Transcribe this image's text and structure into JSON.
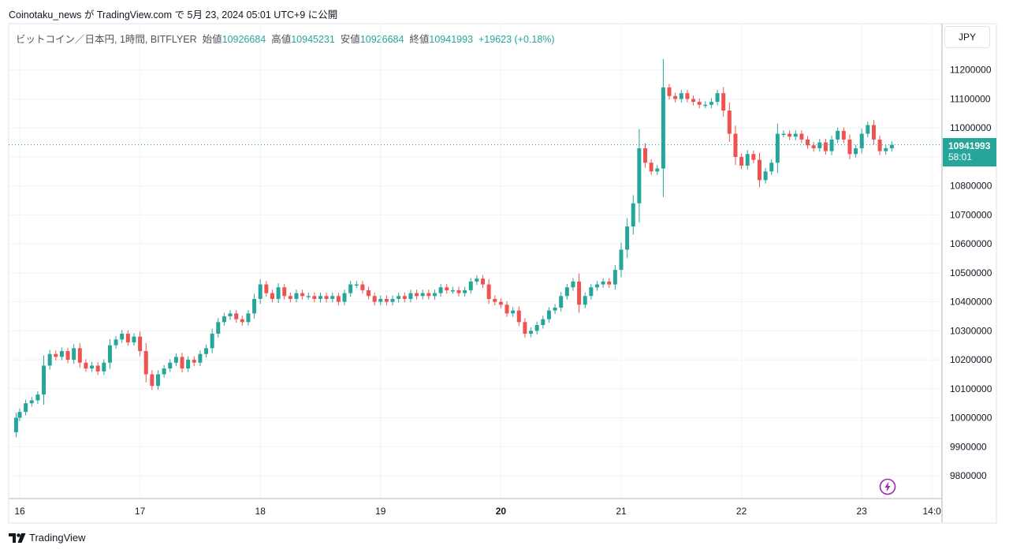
{
  "header": {
    "caption": "Coinotaku_news が TradingView.com で 5月 23, 2024 05:01 UTC+9 に公開"
  },
  "legend": {
    "symbol": "ビットコイン／日本円, 1時間, BITFLYER",
    "open_label": "始値",
    "open": "10926684",
    "high_label": "高値",
    "high": "10945231",
    "low_label": "安値",
    "low": "10926684",
    "close_label": "終値",
    "close": "10941993",
    "change": "+19623 (+0.18%)"
  },
  "currency_button": "JPY",
  "price_tag": {
    "price": "10941993",
    "countdown": "58:01"
  },
  "brand": "TradingView",
  "colors": {
    "up": "#26a69a",
    "down": "#ef5350",
    "grid": "#f0f3fa"
  },
  "chart_data": {
    "type": "candlestick",
    "symbol": "BTC/JPY",
    "interval": "1h",
    "ylim": [
      9740000,
      11280000
    ],
    "y_ticks": [
      9800000,
      9900000,
      10000000,
      10100000,
      10200000,
      10300000,
      10400000,
      10500000,
      10600000,
      10700000,
      10800000,
      10900000,
      11000000,
      11100000,
      11200000
    ],
    "x_ticks": [
      {
        "label": "16",
        "day": 16
      },
      {
        "label": "17",
        "day": 17
      },
      {
        "label": "18",
        "day": 18
      },
      {
        "label": "19",
        "day": 19
      },
      {
        "label": "20",
        "day": 20,
        "bold": true
      },
      {
        "label": "21",
        "day": 21
      },
      {
        "label": "22",
        "day": 22
      },
      {
        "label": "23",
        "day": 23
      },
      {
        "label": "14:0",
        "day": 23.583
      }
    ],
    "last_price": 10941993,
    "series_close": [
      [
        15.95,
        9950000
      ],
      [
        15.97,
        10000000
      ],
      [
        16.0,
        10020000
      ],
      [
        16.05,
        10050000
      ],
      [
        16.1,
        10060000
      ],
      [
        16.15,
        10080000
      ],
      [
        16.2,
        10180000
      ],
      [
        16.25,
        10220000
      ],
      [
        16.3,
        10210000
      ],
      [
        16.35,
        10230000
      ],
      [
        16.4,
        10200000
      ],
      [
        16.45,
        10240000
      ],
      [
        16.5,
        10190000
      ],
      [
        16.55,
        10170000
      ],
      [
        16.6,
        10180000
      ],
      [
        16.65,
        10160000
      ],
      [
        16.7,
        10190000
      ],
      [
        16.75,
        10250000
      ],
      [
        16.8,
        10270000
      ],
      [
        16.85,
        10290000
      ],
      [
        16.9,
        10260000
      ],
      [
        16.95,
        10280000
      ],
      [
        17.0,
        10230000
      ],
      [
        17.05,
        10150000
      ],
      [
        17.1,
        10110000
      ],
      [
        17.15,
        10150000
      ],
      [
        17.2,
        10170000
      ],
      [
        17.25,
        10190000
      ],
      [
        17.3,
        10210000
      ],
      [
        17.35,
        10170000
      ],
      [
        17.4,
        10200000
      ],
      [
        17.45,
        10190000
      ],
      [
        17.5,
        10220000
      ],
      [
        17.55,
        10240000
      ],
      [
        17.6,
        10290000
      ],
      [
        17.65,
        10330000
      ],
      [
        17.7,
        10350000
      ],
      [
        17.75,
        10360000
      ],
      [
        17.8,
        10340000
      ],
      [
        17.85,
        10330000
      ],
      [
        17.9,
        10360000
      ],
      [
        17.95,
        10410000
      ],
      [
        18.0,
        10460000
      ],
      [
        18.05,
        10430000
      ],
      [
        18.1,
        10410000
      ],
      [
        18.15,
        10450000
      ],
      [
        18.2,
        10420000
      ],
      [
        18.25,
        10410000
      ],
      [
        18.3,
        10430000
      ],
      [
        18.35,
        10420000
      ],
      [
        18.4,
        10420000
      ],
      [
        18.45,
        10410000
      ],
      [
        18.5,
        10420000
      ],
      [
        18.55,
        10410000
      ],
      [
        18.6,
        10420000
      ],
      [
        18.65,
        10400000
      ],
      [
        18.7,
        10430000
      ],
      [
        18.75,
        10460000
      ],
      [
        18.8,
        10460000
      ],
      [
        18.85,
        10440000
      ],
      [
        18.9,
        10420000
      ],
      [
        18.95,
        10400000
      ],
      [
        19.0,
        10410000
      ],
      [
        19.05,
        10400000
      ],
      [
        19.1,
        10410000
      ],
      [
        19.15,
        10420000
      ],
      [
        19.2,
        10410000
      ],
      [
        19.25,
        10430000
      ],
      [
        19.3,
        10420000
      ],
      [
        19.35,
        10430000
      ],
      [
        19.4,
        10420000
      ],
      [
        19.45,
        10430000
      ],
      [
        19.5,
        10450000
      ],
      [
        19.55,
        10440000
      ],
      [
        19.6,
        10440000
      ],
      [
        19.65,
        10430000
      ],
      [
        19.7,
        10440000
      ],
      [
        19.75,
        10470000
      ],
      [
        19.8,
        10480000
      ],
      [
        19.85,
        10460000
      ],
      [
        19.9,
        10410000
      ],
      [
        19.95,
        10400000
      ],
      [
        20.0,
        10390000
      ],
      [
        20.05,
        10360000
      ],
      [
        20.1,
        10370000
      ],
      [
        20.15,
        10330000
      ],
      [
        20.2,
        10290000
      ],
      [
        20.25,
        10300000
      ],
      [
        20.3,
        10320000
      ],
      [
        20.35,
        10340000
      ],
      [
        20.4,
        10370000
      ],
      [
        20.45,
        10380000
      ],
      [
        20.5,
        10420000
      ],
      [
        20.55,
        10450000
      ],
      [
        20.6,
        10470000
      ],
      [
        20.65,
        10390000
      ],
      [
        20.7,
        10420000
      ],
      [
        20.75,
        10450000
      ],
      [
        20.8,
        10460000
      ],
      [
        20.85,
        10470000
      ],
      [
        20.9,
        10460000
      ],
      [
        20.95,
        10510000
      ],
      [
        21.0,
        10580000
      ],
      [
        21.05,
        10660000
      ],
      [
        21.1,
        10740000
      ],
      [
        21.15,
        10930000
      ],
      [
        21.2,
        10880000
      ],
      [
        21.25,
        10850000
      ],
      [
        21.3,
        10860000
      ],
      [
        21.35,
        11140000
      ],
      [
        21.4,
        11110000
      ],
      [
        21.45,
        11100000
      ],
      [
        21.5,
        11120000
      ],
      [
        21.55,
        11100000
      ],
      [
        21.6,
        11090000
      ],
      [
        21.65,
        11080000
      ],
      [
        21.7,
        11080000
      ],
      [
        21.75,
        11090000
      ],
      [
        21.8,
        11120000
      ],
      [
        21.85,
        11060000
      ],
      [
        21.9,
        10980000
      ],
      [
        21.95,
        10900000
      ],
      [
        22.0,
        10870000
      ],
      [
        22.05,
        10910000
      ],
      [
        22.1,
        10890000
      ],
      [
        22.15,
        10820000
      ],
      [
        22.2,
        10850000
      ],
      [
        22.25,
        10880000
      ],
      [
        22.3,
        10980000
      ],
      [
        22.35,
        10980000
      ],
      [
        22.4,
        10970000
      ],
      [
        22.45,
        10980000
      ],
      [
        22.5,
        10960000
      ],
      [
        22.55,
        10940000
      ],
      [
        22.6,
        10930000
      ],
      [
        22.65,
        10950000
      ],
      [
        22.7,
        10920000
      ],
      [
        22.75,
        10960000
      ],
      [
        22.8,
        10990000
      ],
      [
        22.85,
        10960000
      ],
      [
        22.9,
        10910000
      ],
      [
        22.95,
        10930000
      ],
      [
        23.0,
        10980000
      ],
      [
        23.05,
        11010000
      ],
      [
        23.1,
        10960000
      ],
      [
        23.15,
        10920000
      ],
      [
        23.2,
        10930000
      ],
      [
        23.25,
        10941993
      ]
    ]
  }
}
